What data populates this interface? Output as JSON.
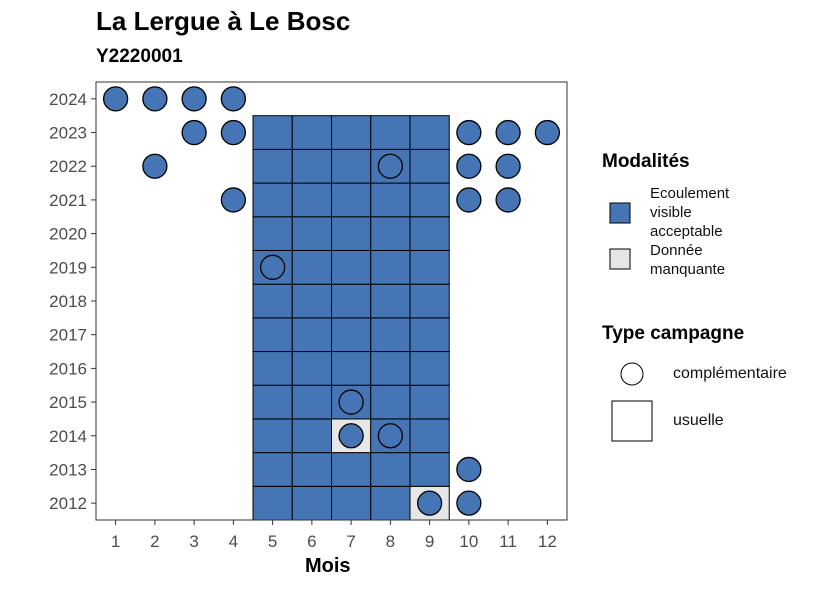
{
  "chart_data": {
    "type": "heatmap",
    "title": "La Lergue à Le Bosc",
    "subtitle": "Y2220001",
    "xlabel": "Mois",
    "ylabel": "",
    "x_ticks": [
      1,
      2,
      3,
      4,
      5,
      6,
      7,
      8,
      9,
      10,
      11,
      12
    ],
    "y_ticks": [
      2012,
      2013,
      2014,
      2015,
      2016,
      2017,
      2018,
      2019,
      2020,
      2021,
      2022,
      2023,
      2024
    ],
    "xlim": [
      0.5,
      12.5
    ],
    "ylim": [
      2011.5,
      2024.5
    ],
    "colors": {
      "ecoulement": "#4575b4",
      "manquante": "#e6e6e6"
    },
    "legend_modalites_title": "Modalités",
    "legend_modalites": [
      {
        "label": "Ecoulement visible acceptable",
        "color": "#4575b4"
      },
      {
        "label": "Donnée manquante",
        "color": "#e6e6e6"
      }
    ],
    "legend_type_title": "Type campagne",
    "legend_type": [
      {
        "label": "complémentaire",
        "shape": "circle"
      },
      {
        "label": "usuelle",
        "shape": "square"
      }
    ],
    "usuelle_months": [
      5,
      6,
      7,
      8,
      9
    ],
    "usuelle_years": [
      2012,
      2023
    ],
    "usuelle_missing": [
      {
        "month": 7,
        "year": 2014
      },
      {
        "month": 9,
        "year": 2012
      }
    ],
    "complementaire_points": [
      {
        "month": 1,
        "year": 2024,
        "modalite": "ecoulement"
      },
      {
        "month": 2,
        "year": 2024,
        "modalite": "ecoulement"
      },
      {
        "month": 3,
        "year": 2024,
        "modalite": "ecoulement"
      },
      {
        "month": 4,
        "year": 2024,
        "modalite": "ecoulement"
      },
      {
        "month": 3,
        "year": 2023,
        "modalite": "ecoulement"
      },
      {
        "month": 4,
        "year": 2023,
        "modalite": "ecoulement"
      },
      {
        "month": 10,
        "year": 2023,
        "modalite": "ecoulement"
      },
      {
        "month": 11,
        "year": 2023,
        "modalite": "ecoulement"
      },
      {
        "month": 12,
        "year": 2023,
        "modalite": "ecoulement"
      },
      {
        "month": 2,
        "year": 2022,
        "modalite": "ecoulement"
      },
      {
        "month": 8,
        "year": 2022,
        "modalite": "ecoulement"
      },
      {
        "month": 10,
        "year": 2022,
        "modalite": "ecoulement"
      },
      {
        "month": 11,
        "year": 2022,
        "modalite": "ecoulement"
      },
      {
        "month": 4,
        "year": 2021,
        "modalite": "ecoulement"
      },
      {
        "month": 10,
        "year": 2021,
        "modalite": "ecoulement"
      },
      {
        "month": 11,
        "year": 2021,
        "modalite": "ecoulement"
      },
      {
        "month": 5,
        "year": 2019,
        "modalite": "ecoulement"
      },
      {
        "month": 7,
        "year": 2015,
        "modalite": "ecoulement"
      },
      {
        "month": 7,
        "year": 2014,
        "modalite": "ecoulement"
      },
      {
        "month": 8,
        "year": 2014,
        "modalite": "ecoulement"
      },
      {
        "month": 10,
        "year": 2013,
        "modalite": "ecoulement"
      },
      {
        "month": 9,
        "year": 2012,
        "modalite": "ecoulement"
      },
      {
        "month": 10,
        "year": 2012,
        "modalite": "ecoulement"
      }
    ],
    "grid": false,
    "legend_position": "right"
  }
}
